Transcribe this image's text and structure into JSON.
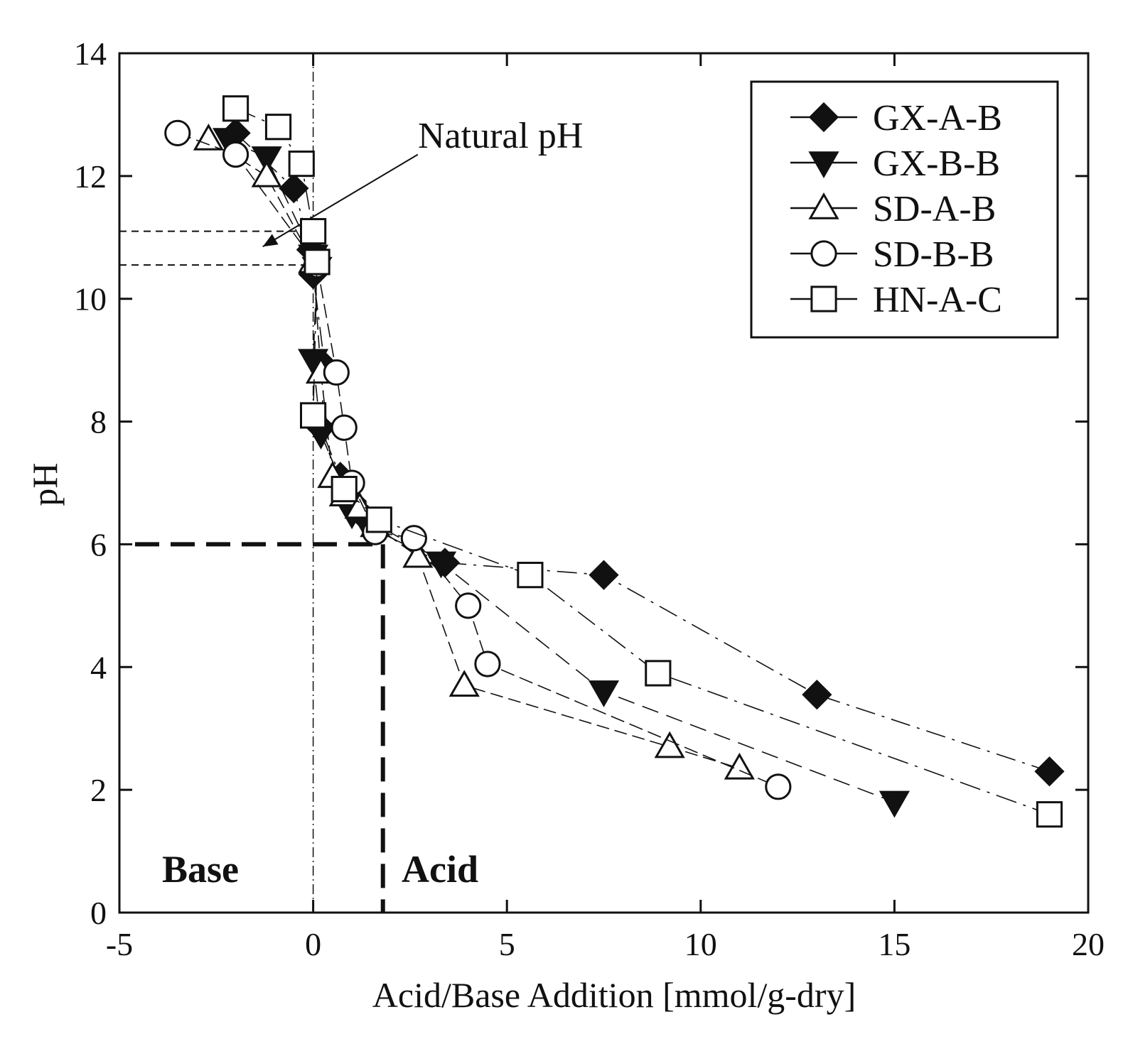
{
  "chart_data": {
    "type": "scatter",
    "xlabel": "Acid/Base Addition [mmol/g-dry]",
    "ylabel": "pH",
    "xlim": [
      -5,
      20
    ],
    "ylim": [
      0,
      14
    ],
    "xticks": [
      "-5",
      "0",
      "5",
      "10",
      "15",
      "20"
    ],
    "yticks": [
      "0",
      "2",
      "4",
      "6",
      "8",
      "10",
      "12",
      "14"
    ],
    "legend_position": "top-right",
    "annotations": {
      "natural_ph": "Natural pH",
      "base": "Base",
      "acid": "Acid"
    },
    "reference_lines": {
      "zero_line_x": 0,
      "target_ph": 6,
      "target_addition": 1.8,
      "natural_ph_upper": 11.1,
      "natural_ph_lower": 10.55
    },
    "series": [
      {
        "name": "GX-A-B",
        "marker": "diamond-filled",
        "x": [
          -2.0,
          -0.5,
          -0.05,
          0.0,
          0.3,
          0.2,
          0.7,
          1.0,
          1.4,
          3.4,
          7.5,
          13.0,
          19.0
        ],
        "y": [
          12.7,
          11.8,
          10.8,
          10.4,
          8.9,
          7.9,
          7.1,
          6.7,
          6.4,
          5.7,
          5.5,
          3.55,
          2.3
        ]
      },
      {
        "name": "GX-B-B",
        "marker": "triangle-down-filled",
        "x": [
          -2.2,
          -1.2,
          0.0,
          0.1,
          0.0,
          0.2,
          0.8,
          1.0,
          1.4,
          3.3,
          7.5,
          15.0
        ],
        "y": [
          12.6,
          12.3,
          10.7,
          10.5,
          9.0,
          7.8,
          6.9,
          6.5,
          6.3,
          5.7,
          3.6,
          1.8
        ]
      },
      {
        "name": "SD-A-B",
        "marker": "triangle-up-open",
        "x": [
          -2.7,
          -1.2,
          0.0,
          0.2,
          0.5,
          0.8,
          1.2,
          1.6,
          2.7,
          3.9,
          9.2,
          11.0
        ],
        "y": [
          12.6,
          12.0,
          10.6,
          8.8,
          7.1,
          6.8,
          6.6,
          6.3,
          5.8,
          3.7,
          2.7,
          2.35
        ]
      },
      {
        "name": "SD-B-B",
        "marker": "circle-open",
        "x": [
          -3.5,
          -2.0,
          0.1,
          0.6,
          0.8,
          1.0,
          1.6,
          2.6,
          4.0,
          4.5,
          12.0
        ],
        "y": [
          12.7,
          12.35,
          10.55,
          8.8,
          7.9,
          7.0,
          6.2,
          6.1,
          5.0,
          4.05,
          2.05
        ]
      },
      {
        "name": "HN-A-C",
        "marker": "square-open",
        "x": [
          -2.0,
          -0.9,
          -0.3,
          0.0,
          0.1,
          0.0,
          0.8,
          1.7,
          5.6,
          8.9,
          19.0
        ],
        "y": [
          13.1,
          12.8,
          12.2,
          11.1,
          10.6,
          8.1,
          6.9,
          6.4,
          5.5,
          3.9,
          1.6
        ]
      }
    ]
  }
}
